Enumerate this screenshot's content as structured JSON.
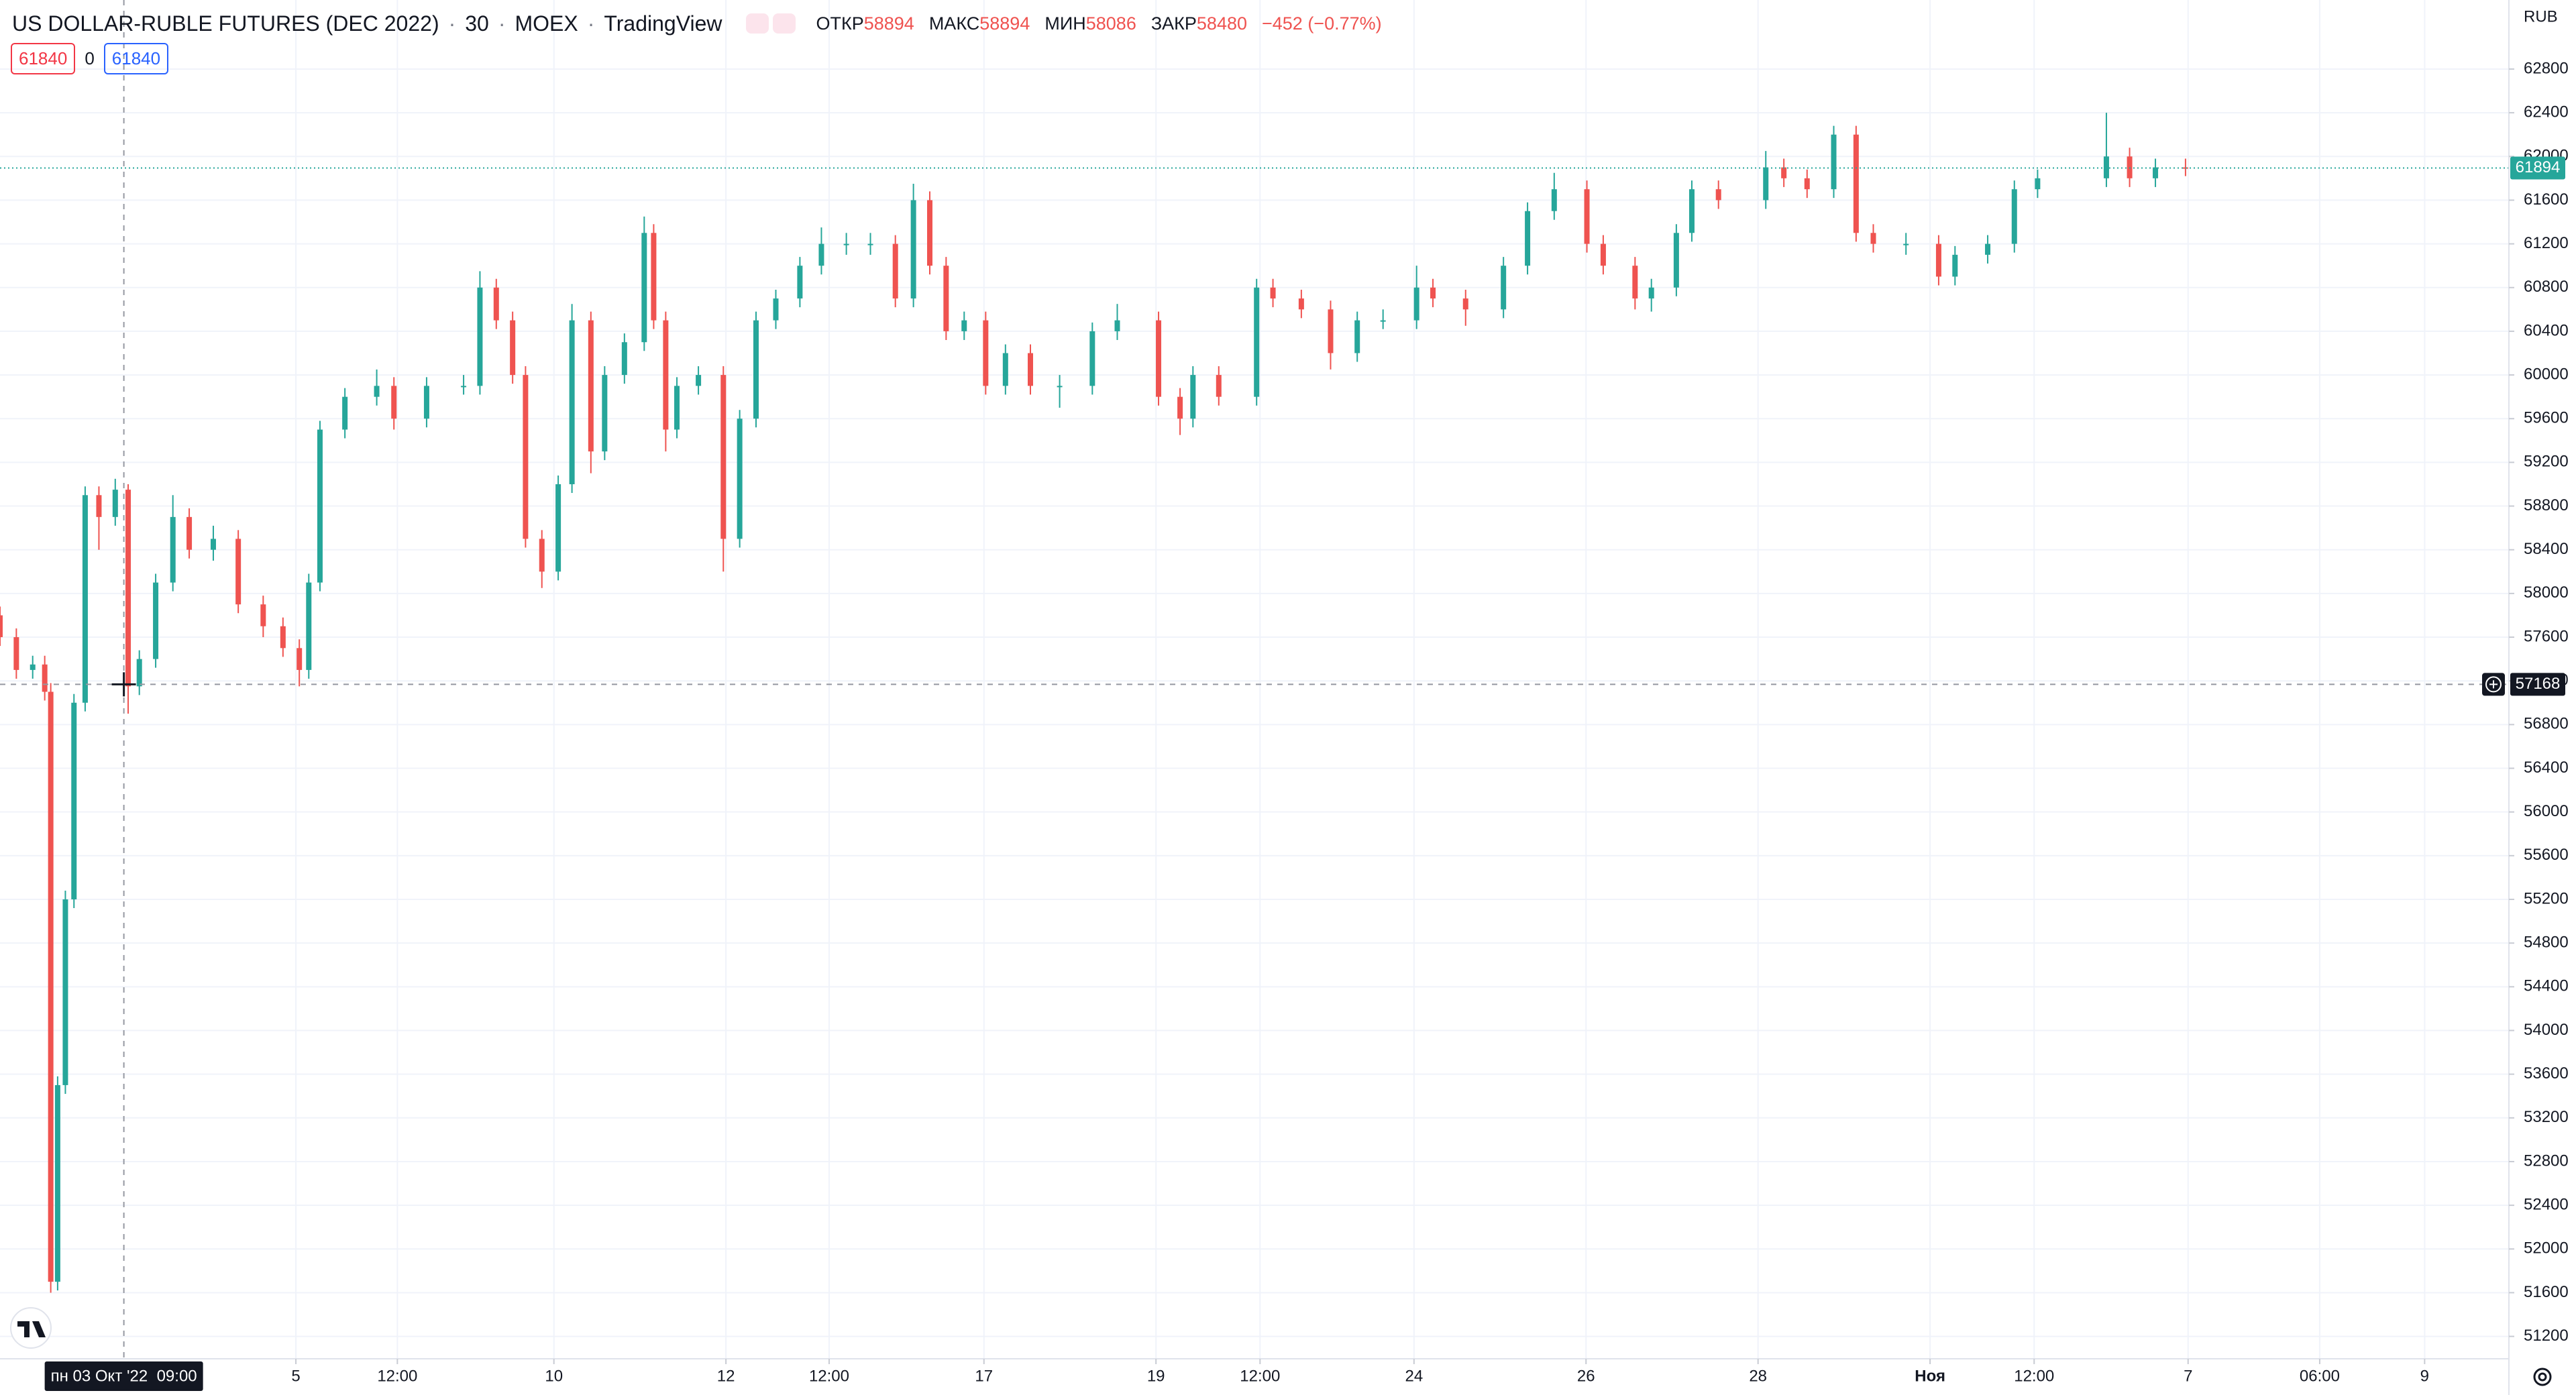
{
  "chart_data": {
    "type": "candlestick",
    "title": "US DOLLAR-RUBLE FUTURES (DEC 2022)",
    "interval": "30",
    "exchange": "MOEX",
    "source": "TradingView",
    "legend": [
      {
        "label": "ОТКР",
        "value": 58894
      },
      {
        "label": "МАКС",
        "value": 58894
      },
      {
        "label": "МИН",
        "value": 58086
      },
      {
        "label": "ЗАКР",
        "value": 58480
      }
    ],
    "change": "−452 (−0.77%)",
    "badges": [
      61840,
      0,
      61840
    ],
    "currency": "RUB",
    "up_color": "#26a69a",
    "down_color": "#ef5350",
    "grid": true,
    "x": [
      -1.44,
      -1.25,
      -1.06,
      -0.92,
      -0.85,
      -0.77,
      -0.68,
      -0.58,
      -0.45,
      -0.29,
      -0.1,
      0.05,
      0.18,
      0.37,
      0.57,
      0.76,
      1.04,
      1.33,
      1.62,
      1.85,
      2.04,
      2.15,
      2.28,
      2.57,
      2.94,
      3.14,
      3.52,
      3.95,
      4.14,
      4.33,
      4.52,
      4.67,
      4.86,
      5.05,
      5.21,
      5.43,
      5.59,
      5.82,
      6.05,
      6.16,
      6.3,
      6.43,
      6.68,
      6.97,
      7.16,
      7.35,
      7.58,
      7.86,
      8.11,
      8.4,
      8.68,
      8.97,
      9.18,
      9.37,
      9.56,
      9.77,
      10.02,
      10.25,
      10.54,
      10.88,
      11.26,
      11.55,
      12.03,
      12.28,
      12.43,
      12.73,
      13.17,
      13.36,
      13.69,
      14.03,
      14.34,
      14.64,
      15.03,
      15.22,
      15.6,
      16.04,
      16.32,
      16.63,
      17.01,
      17.2,
      17.57,
      17.76,
      18.05,
      18.23,
      18.54,
      19.09,
      19.3,
      19.57,
      19.88,
      20.14,
      20.34,
      20.72,
      21.1,
      21.29,
      21.67,
      21.98,
      22.25,
      23.05,
      23.32,
      23.62,
      23.97
    ],
    "open": [
      57800,
      57600,
      57300,
      57350,
      57100,
      51700,
      53500,
      55200,
      57000,
      58900,
      58700,
      58950,
      57150,
      57400,
      58100,
      58700,
      58400,
      58500,
      57900,
      57700,
      57500,
      57300,
      58100,
      59500,
      59800,
      59900,
      59600,
      59900,
      59900,
      60800,
      60500,
      60000,
      58500,
      58200,
      59000,
      60500,
      59300,
      60000,
      60300,
      61300,
      60500,
      59500,
      59900,
      60000,
      58500,
      59600,
      60500,
      60700,
      61000,
      61200,
      61200,
      61200,
      60700,
      61600,
      61000,
      60400,
      60500,
      59900,
      60200,
      59900,
      59900,
      60400,
      60500,
      59800,
      59600,
      60000,
      59800,
      60800,
      60700,
      60600,
      60200,
      60500,
      60500,
      60800,
      60700,
      60600,
      61000,
      61500,
      61700,
      61200,
      61000,
      60700,
      60800,
      61300,
      61700,
      61600,
      61900,
      61800,
      61700,
      62200,
      61300,
      61200,
      61200,
      60900,
      61100,
      61200,
      61700,
      61800,
      62000,
      61800,
      61900
    ],
    "high": [
      57880,
      57680,
      57430,
      57430,
      57180,
      53580,
      55280,
      57080,
      58980,
      58980,
      59050,
      59000,
      57480,
      58180,
      58900,
      58780,
      58620,
      58580,
      57980,
      57780,
      57580,
      58180,
      59580,
      59880,
      60050,
      59980,
      59980,
      60000,
      60950,
      60880,
      60580,
      60080,
      58580,
      59080,
      60650,
      60580,
      60080,
      60380,
      61450,
      61380,
      60580,
      59980,
      60080,
      60080,
      59680,
      60580,
      60780,
      61080,
      61350,
      61300,
      61300,
      61280,
      61750,
      61680,
      61080,
      60580,
      60580,
      60280,
      60280,
      60000,
      60480,
      60650,
      60580,
      59880,
      60080,
      60080,
      60880,
      60880,
      60780,
      60680,
      60580,
      60600,
      61000,
      60880,
      60780,
      61080,
      61580,
      61850,
      61780,
      61280,
      61080,
      60880,
      61380,
      61780,
      61780,
      62050,
      61980,
      61880,
      62280,
      62280,
      61380,
      61300,
      61280,
      61180,
      61280,
      61780,
      61880,
      62400,
      62080,
      61980,
      61980
    ],
    "low": [
      57520,
      57220,
      57220,
      57020,
      51600,
      51620,
      53420,
      55120,
      56920,
      58400,
      58620,
      56900,
      57070,
      57320,
      58020,
      58320,
      58300,
      57820,
      57600,
      57420,
      57150,
      57220,
      58020,
      59420,
      59720,
      59500,
      59520,
      59820,
      59820,
      60420,
      59920,
      58420,
      58050,
      58120,
      58920,
      59100,
      59220,
      59920,
      60220,
      60420,
      59300,
      59420,
      59820,
      58200,
      58420,
      59520,
      60420,
      60620,
      60920,
      61100,
      61100,
      60620,
      60620,
      60920,
      60320,
      60320,
      59820,
      59820,
      59820,
      59700,
      59820,
      60320,
      59720,
      59450,
      59520,
      59720,
      59720,
      60620,
      60520,
      60050,
      60120,
      60420,
      60420,
      60620,
      60450,
      60520,
      60920,
      61420,
      61120,
      60920,
      60600,
      60580,
      60720,
      61220,
      61520,
      61520,
      61720,
      61620,
      61620,
      61220,
      61120,
      61100,
      60820,
      60820,
      61020,
      61120,
      61620,
      61720,
      61720,
      61720,
      61820
    ],
    "close": [
      57600,
      57300,
      57350,
      57100,
      51700,
      53500,
      55200,
      57000,
      58900,
      58700,
      58950,
      57150,
      57400,
      58100,
      58700,
      58400,
      58500,
      57900,
      57700,
      57500,
      57300,
      58100,
      59500,
      59800,
      59900,
      59600,
      59900,
      59900,
      60800,
      60500,
      60000,
      58500,
      58200,
      59000,
      60500,
      59300,
      60000,
      60300,
      61300,
      60500,
      59500,
      59900,
      60000,
      58500,
      59600,
      60500,
      60700,
      61000,
      61200,
      61200,
      61200,
      60700,
      61600,
      61000,
      60400,
      60500,
      59900,
      60200,
      59900,
      59900,
      60400,
      60500,
      59800,
      59600,
      60000,
      59800,
      60800,
      60700,
      60600,
      60200,
      60500,
      60500,
      60800,
      60700,
      60600,
      61000,
      61500,
      61700,
      61200,
      61000,
      60700,
      60800,
      61300,
      61700,
      61600,
      61900,
      61800,
      61700,
      62200,
      61300,
      61200,
      61200,
      60900,
      61100,
      61200,
      61700,
      61800,
      62000,
      61800,
      61900,
      61894
    ],
    "last_price": 61894,
    "crosshair": {
      "x": 0,
      "price": 57168,
      "label": "пн 03 Окт '22  09:00"
    },
    "xlim": [
      -1.44,
      27.73
    ],
    "ylim": [
      50995,
      63432
    ],
    "xticks": [
      {
        "value": 2,
        "label": "5"
      },
      {
        "value": 3.18,
        "label": "12:00"
      },
      {
        "value": 5,
        "label": "10"
      },
      {
        "value": 7,
        "label": "12"
      },
      {
        "value": 8.2,
        "label": "12:00"
      },
      {
        "value": 10,
        "label": "17"
      },
      {
        "value": 12,
        "label": "19"
      },
      {
        "value": 13.21,
        "label": "12:00"
      },
      {
        "value": 15,
        "label": "24"
      },
      {
        "value": 17,
        "label": "26"
      },
      {
        "value": 19,
        "label": "28"
      },
      {
        "value": 21,
        "label": "Ноя"
      },
      {
        "value": 22.21,
        "label": "12:00"
      },
      {
        "value": 24,
        "label": "7"
      },
      {
        "value": 25.53,
        "label": "06:00"
      },
      {
        "value": 26.75,
        "label": "9"
      }
    ],
    "yticks": [
      51200,
      51600,
      52000,
      52400,
      52800,
      53200,
      53600,
      54000,
      54400,
      54800,
      55200,
      55600,
      56000,
      56400,
      56800,
      57200,
      57600,
      58000,
      58400,
      58800,
      59200,
      59600,
      60000,
      60400,
      60800,
      61200,
      61600,
      62000,
      62400,
      62800
    ]
  }
}
